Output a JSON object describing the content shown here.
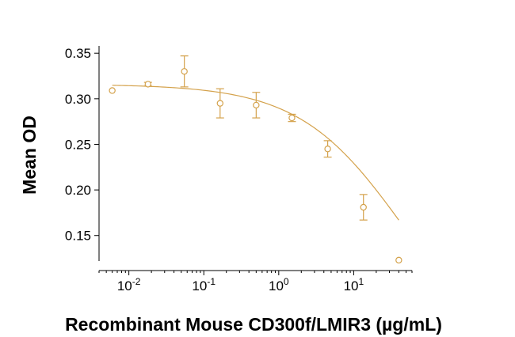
{
  "chart_data": {
    "type": "scatter",
    "title": "",
    "xlabel": "Recombinant Mouse CD300f/LMIR3 (µg/mL)",
    "ylabel": "Mean OD",
    "x_scale": "log",
    "xlim": [
      0.004,
      60
    ],
    "ylim": [
      0.122,
      0.358
    ],
    "x_ticks": [
      {
        "value": 0.01,
        "base": "10",
        "exp": "-2"
      },
      {
        "value": 0.1,
        "base": "10",
        "exp": "-1"
      },
      {
        "value": 1,
        "base": "10",
        "exp": "0"
      },
      {
        "value": 10,
        "base": "10",
        "exp": "1"
      }
    ],
    "y_ticks": [
      {
        "value": 0.15,
        "label": "0.15"
      },
      {
        "value": 0.2,
        "label": "0.20"
      },
      {
        "value": 0.25,
        "label": "0.25"
      },
      {
        "value": 0.3,
        "label": "0.30"
      },
      {
        "value": 0.35,
        "label": "0.35"
      }
    ],
    "grid": false,
    "color": "#D4A24C",
    "series": [
      {
        "points": [
          {
            "x": 0.006,
            "y": 0.309,
            "err": 0
          },
          {
            "x": 0.018,
            "y": 0.316,
            "err": 0.002
          },
          {
            "x": 0.055,
            "y": 0.33,
            "err": 0.017
          },
          {
            "x": 0.165,
            "y": 0.295,
            "err": 0.016
          },
          {
            "x": 0.5,
            "y": 0.293,
            "err": 0.014
          },
          {
            "x": 1.5,
            "y": 0.279,
            "err": 0.004
          },
          {
            "x": 4.5,
            "y": 0.245,
            "err": 0.009
          },
          {
            "x": 13.5,
            "y": 0.181,
            "err": 0.014
          },
          {
            "x": 40,
            "y": 0.123,
            "err": 0
          }
        ]
      }
    ],
    "fit_curve": {
      "type": "4PL",
      "top": 0.316,
      "bottom": 0.0,
      "ec50": 48,
      "hill": 0.62,
      "x_range": [
        0.006,
        40
      ]
    }
  }
}
